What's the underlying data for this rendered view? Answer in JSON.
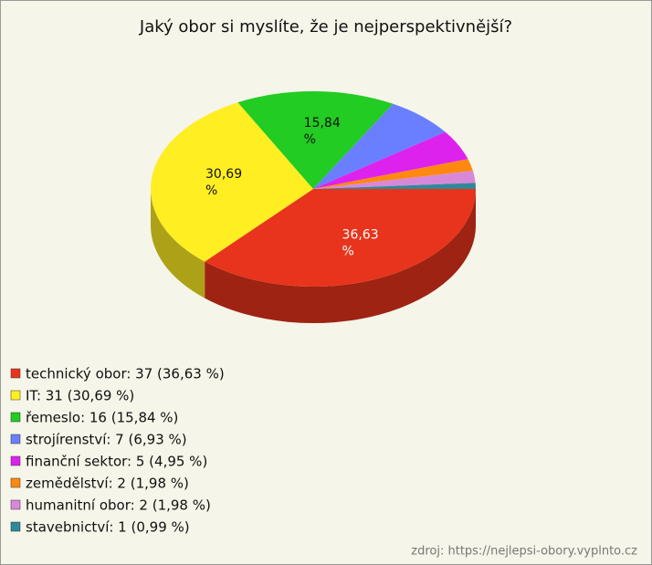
{
  "chart_data": {
    "type": "pie",
    "title": "Jaký obor si myslíte, že je nejperspektivnější?",
    "categories": [
      "technický obor: 37 (36,63 %)",
      "IT: 31 (30,69 %)",
      "řemeslo: 16 (15,84 %)",
      "strojírenství: 7 (6,93 %)",
      "finanční sektor: 5 (4,95 %)",
      "zemědělství: 2 (1,98 %)",
      "humanitní obor: 2 (1,98 %)",
      "stavebnictví: 1 (0,99 %)"
    ],
    "values": [
      36.63,
      30.69,
      15.84,
      6.93,
      4.95,
      1.98,
      1.98,
      0.99
    ],
    "value_labels": [
      "36,63 %",
      "30,69 %",
      "15,84 %",
      null,
      null,
      null,
      null,
      null
    ],
    "colors": [
      "#e8341c",
      "#ffee22",
      "#22cc22",
      "#6a7fff",
      "#dd22ee",
      "#ff8811",
      "#d888d8",
      "#2e8a9a"
    ],
    "source": "zdroj: https://nejlepsi-obory.vyplnto.cz"
  }
}
